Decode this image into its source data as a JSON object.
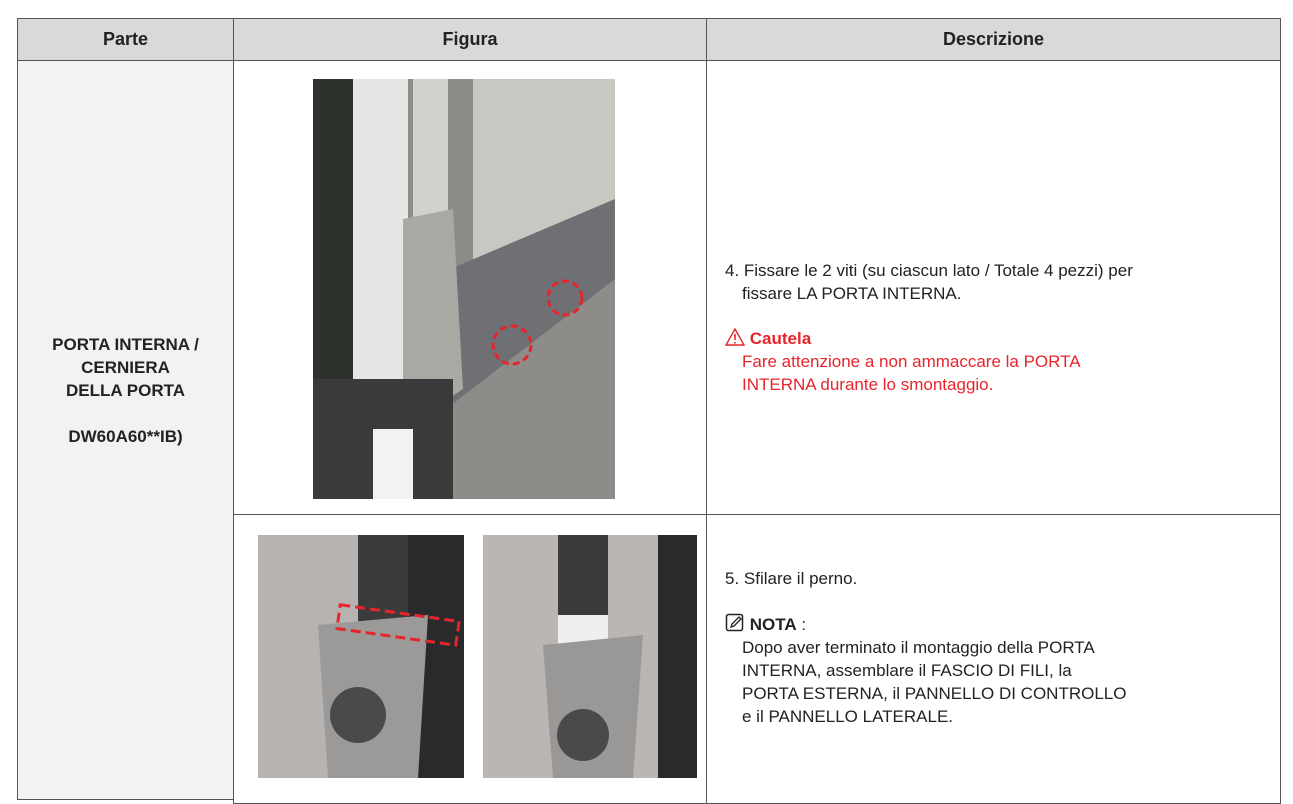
{
  "table": {
    "header": [
      "Parte",
      "Figura",
      "Descrizione"
    ],
    "part": [
      "PORTA INTERNA /",
      "CERNIERA",
      "DELLA PORTA",
      "DW60A60**IB)"
    ],
    "rows": [
      {
        "step": [
          "4. Fissare le 2 viti (su ciascun lato / Totale 4 pezzi) per",
          "fissare LA PORTA INTERNA."
        ],
        "caution_label": "Cautela",
        "caution": [
          "Fare attenzione a non ammaccare la PORTA",
          "INTERNA durante lo smontaggio."
        ]
      },
      {
        "step": [
          "5. Sfilare il perno."
        ],
        "note_label": "NOTA",
        "note_sep": ":",
        "note": [
          "Dopo aver terminato il montaggio della PORTA",
          "INTERNA, assemblare il FASCIO DI FILI, la",
          "PORTA ESTERNA, il PANNELLO DI CONTROLLO",
          "e il PANNELLO LATERALE."
        ]
      }
    ]
  }
}
